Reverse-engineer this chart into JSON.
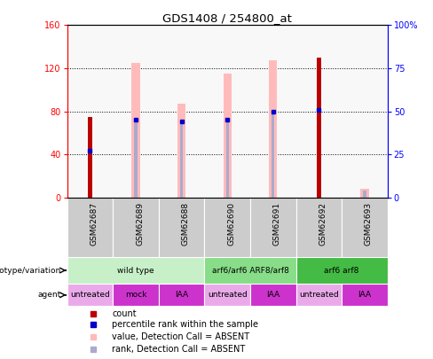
{
  "title": "GDS1408 / 254800_at",
  "samples": [
    "GSM62687",
    "GSM62689",
    "GSM62688",
    "GSM62690",
    "GSM62691",
    "GSM62692",
    "GSM62693"
  ],
  "count_values": [
    75,
    0,
    0,
    0,
    0,
    130,
    0
  ],
  "count_present": [
    true,
    false,
    false,
    false,
    false,
    true,
    false
  ],
  "pink_bar_heights": [
    0,
    125,
    87,
    115,
    127,
    0,
    8
  ],
  "pink_bar_present": [
    false,
    true,
    true,
    true,
    true,
    false,
    true
  ],
  "blue_square_values_pct": [
    27,
    45,
    44,
    45,
    50,
    51,
    0
  ],
  "blue_square_present": [
    true,
    true,
    true,
    true,
    true,
    true,
    false
  ],
  "lavender_bar_heights_pct": [
    0,
    45,
    44,
    45,
    50,
    0,
    4
  ],
  "lavender_bar_present": [
    false,
    true,
    true,
    true,
    true,
    false,
    true
  ],
  "ylim_left": [
    0,
    160
  ],
  "ylim_right": [
    0,
    100
  ],
  "left_yticks": [
    0,
    40,
    80,
    120,
    160
  ],
  "right_yticks": [
    0,
    25,
    50,
    75,
    100
  ],
  "right_yticklabels": [
    "0",
    "25",
    "50",
    "75",
    "100%"
  ],
  "left_yticklabels": [
    "0",
    "40",
    "80",
    "120",
    "160"
  ],
  "genotype_groups": [
    {
      "label": "wild type",
      "start": 0,
      "end": 2,
      "color": "#c8f0c8"
    },
    {
      "label": "arf6/arf6 ARF8/arf8",
      "start": 3,
      "end": 4,
      "color": "#88dd88"
    },
    {
      "label": "arf6 arf8",
      "start": 5,
      "end": 6,
      "color": "#44bb44"
    }
  ],
  "agent_groups": [
    {
      "label": "untreated",
      "start": 0,
      "end": 0,
      "color": "#eaaaea"
    },
    {
      "label": "mock",
      "start": 1,
      "end": 1,
      "color": "#cc33cc"
    },
    {
      "label": "IAA",
      "start": 2,
      "end": 2,
      "color": "#cc33cc"
    },
    {
      "label": "untreated",
      "start": 3,
      "end": 3,
      "color": "#eaaaea"
    },
    {
      "label": "IAA",
      "start": 4,
      "end": 4,
      "color": "#cc33cc"
    },
    {
      "label": "untreated",
      "start": 5,
      "end": 5,
      "color": "#eaaaea"
    },
    {
      "label": "IAA",
      "start": 6,
      "end": 6,
      "color": "#cc33cc"
    }
  ],
  "color_count": "#bb0000",
  "color_pink": "#ffbbbb",
  "color_blue": "#0000cc",
  "color_lavender": "#aaaacc",
  "pink_bar_width": 0.18,
  "lavender_bar_width": 0.06,
  "count_bar_width": 0.1,
  "dot_size": 18,
  "background_color": "#ffffff",
  "plot_bg": "#f8f8f8",
  "xtick_bg": "#cccccc"
}
